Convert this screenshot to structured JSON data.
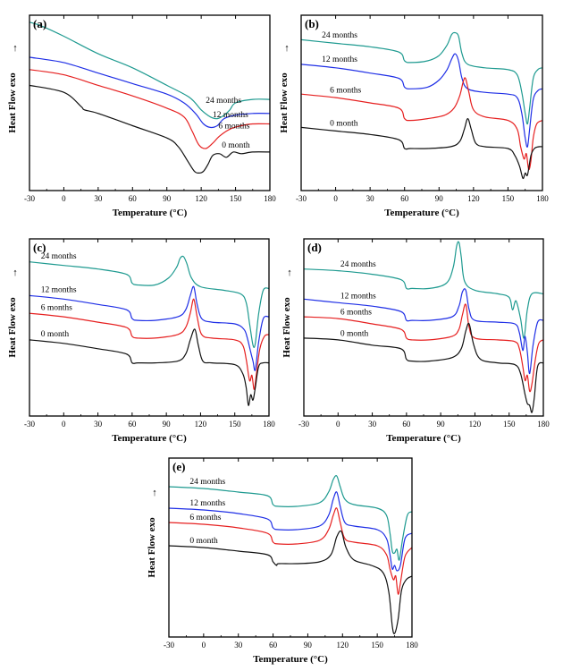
{
  "figure": {
    "y_axis_arrow": "↑",
    "colors": {
      "24 months": "#1e9a90",
      "12 months": "#1f2fe6",
      "6 months": "#e62020",
      "0 month": "#111111"
    }
  },
  "chart_data": [
    {
      "type": "line",
      "panel": "(a)",
      "xlabel": "Temperature (°C)",
      "ylabel": "Heat Flow  exo",
      "xlim": [
        -30,
        180
      ],
      "xticks": [
        -30,
        0,
        30,
        60,
        90,
        120,
        150,
        180
      ],
      "ylim": [
        0,
        100
      ],
      "grid": false,
      "series": [
        {
          "name": "24 months",
          "color": "#1e9a90",
          "x": [
            -30,
            -20,
            0,
            30,
            60,
            90,
            110,
            120,
            128,
            134,
            140,
            145,
            150,
            165,
            180
          ],
          "y": [
            96,
            94,
            88,
            78,
            70,
            60,
            53,
            46,
            42,
            41,
            43,
            46,
            50,
            52,
            52
          ]
        },
        {
          "name": "12 months",
          "color": "#1f2fe6",
          "x": [
            -30,
            0,
            30,
            60,
            90,
            105,
            115,
            122,
            128,
            134,
            140,
            150,
            165,
            180
          ],
          "y": [
            76,
            73,
            67,
            61,
            55,
            50,
            44,
            38,
            36,
            37,
            41,
            43,
            44,
            44
          ]
        },
        {
          "name": "6 months",
          "color": "#e62020",
          "x": [
            -30,
            0,
            30,
            60,
            90,
            105,
            112,
            118,
            124,
            130,
            136,
            145,
            155,
            165,
            180
          ],
          "y": [
            69,
            66,
            60,
            54,
            47,
            42,
            34,
            26,
            24,
            27,
            31,
            35,
            37,
            38,
            38
          ]
        },
        {
          "name": "0 month",
          "color": "#111111",
          "x": [
            -30,
            0,
            15,
            18,
            30,
            60,
            90,
            100,
            108,
            114,
            118,
            122,
            126,
            130,
            136,
            142,
            148,
            155,
            165,
            180
          ],
          "y": [
            60,
            56,
            48,
            46,
            44,
            37,
            30,
            25,
            17,
            11,
            10,
            11,
            15,
            20,
            21,
            19,
            22,
            21,
            22,
            22
          ]
        }
      ]
    },
    {
      "type": "line",
      "panel": "(b)",
      "xlabel": "Temperature (°C)",
      "ylabel": "Heat Flow  exo",
      "xlim": [
        -30,
        180
      ],
      "xticks": [
        -30,
        0,
        30,
        60,
        90,
        120,
        150,
        180
      ],
      "ylim": [
        0,
        100
      ],
      "grid": false,
      "series": [
        {
          "name": "24 months",
          "color": "#1e9a90",
          "x": [
            -30,
            0,
            30,
            55,
            60,
            65,
            80,
            90,
            97,
            101,
            104,
            107,
            110,
            115,
            130,
            150,
            158,
            162,
            165,
            167,
            169,
            172,
            176,
            180
          ],
          "y": [
            86,
            84,
            82,
            79,
            74,
            73,
            74,
            77,
            83,
            89,
            90,
            88,
            78,
            72,
            70,
            69,
            66,
            56,
            44,
            38,
            48,
            64,
            69,
            70
          ]
        },
        {
          "name": "12 months",
          "color": "#1f2fe6",
          "x": [
            -30,
            0,
            30,
            55,
            60,
            65,
            80,
            90,
            97,
            101,
            104,
            107,
            110,
            115,
            130,
            150,
            158,
            162,
            165,
            167,
            169,
            172,
            176,
            180
          ],
          "y": [
            72,
            70,
            67,
            64,
            59,
            58,
            59,
            63,
            69,
            75,
            78,
            74,
            64,
            58,
            56,
            55,
            53,
            44,
            30,
            25,
            36,
            52,
            57,
            58
          ]
        },
        {
          "name": "6 months",
          "color": "#e62020",
          "x": [
            -30,
            0,
            30,
            55,
            60,
            65,
            80,
            95,
            103,
            108,
            111,
            113,
            116,
            120,
            130,
            150,
            158,
            161,
            164,
            166,
            168,
            170,
            172,
            175,
            180
          ],
          "y": [
            55,
            53,
            50,
            47,
            41,
            40,
            41,
            43,
            47,
            54,
            62,
            64,
            56,
            46,
            42,
            40,
            35,
            25,
            18,
            21,
            12,
            17,
            30,
            38,
            40
          ]
        },
        {
          "name": "0 month",
          "color": "#111111",
          "x": [
            -30,
            0,
            30,
            55,
            60,
            65,
            80,
            100,
            108,
            112,
            115,
            118,
            122,
            130,
            150,
            156,
            160,
            163,
            165,
            167,
            170,
            173,
            177,
            180
          ],
          "y": [
            36,
            34,
            32,
            29,
            24,
            24,
            24,
            25,
            28,
            35,
            41,
            35,
            27,
            25,
            24,
            20,
            14,
            7,
            10,
            9,
            20,
            24,
            25,
            25
          ]
        }
      ]
    },
    {
      "type": "line",
      "panel": "(c)",
      "xlabel": "Temperature (°C)",
      "ylabel": "Heat Flow  exo",
      "xlim": [
        -30,
        180
      ],
      "xticks": [
        -30,
        0,
        30,
        60,
        90,
        120,
        150,
        180
      ],
      "ylim": [
        0,
        100
      ],
      "grid": false,
      "series": [
        {
          "name": "24 months",
          "color": "#1e9a90",
          "x": [
            -30,
            0,
            30,
            55,
            60,
            65,
            80,
            92,
            99,
            102,
            105,
            108,
            112,
            120,
            140,
            155,
            160,
            163,
            166,
            168,
            171,
            175,
            180
          ],
          "y": [
            87,
            85,
            83,
            80,
            75,
            74,
            74,
            78,
            84,
            89,
            90,
            86,
            78,
            73,
            71,
            69,
            64,
            52,
            40,
            41,
            58,
            71,
            72
          ]
        },
        {
          "name": "12 months",
          "color": "#1f2fe6",
          "x": [
            -30,
            0,
            30,
            55,
            60,
            65,
            80,
            100,
            107,
            111,
            114,
            117,
            121,
            130,
            150,
            158,
            161,
            164,
            166,
            168,
            171,
            175,
            180
          ],
          "y": [
            68,
            66,
            63,
            60,
            55,
            54,
            54,
            56,
            60,
            68,
            73,
            63,
            55,
            53,
            52,
            49,
            44,
            36,
            31,
            26,
            42,
            55,
            56
          ]
        },
        {
          "name": "6 months",
          "color": "#e62020",
          "x": [
            -30,
            0,
            30,
            55,
            60,
            65,
            80,
            100,
            107,
            111,
            114,
            117,
            121,
            130,
            150,
            157,
            160,
            163,
            165,
            167,
            169,
            172,
            176,
            180
          ],
          "y": [
            58,
            56,
            53,
            50,
            45,
            44,
            44,
            46,
            50,
            58,
            66,
            56,
            46,
            44,
            43,
            40,
            32,
            20,
            23,
            15,
            24,
            38,
            45,
            46
          ]
        },
        {
          "name": "0 month",
          "color": "#111111",
          "x": [
            -30,
            0,
            30,
            55,
            60,
            65,
            80,
            100,
            107,
            111,
            115,
            118,
            122,
            130,
            150,
            157,
            160,
            162,
            164,
            166,
            168,
            171,
            175,
            180
          ],
          "y": [
            43,
            41,
            38,
            35,
            30,
            30,
            30,
            31,
            35,
            43,
            49,
            40,
            31,
            30,
            29,
            24,
            16,
            6,
            12,
            9,
            16,
            28,
            30,
            30
          ]
        }
      ]
    },
    {
      "type": "line",
      "panel": "(d)",
      "xlabel": "Temperature (°C)",
      "ylabel": "Heat Flow  exo",
      "xlim": [
        -30,
        180
      ],
      "xticks": [
        -30,
        0,
        30,
        60,
        90,
        120,
        150,
        180
      ],
      "ylim": [
        0,
        100
      ],
      "grid": false,
      "series": [
        {
          "name": "24 months",
          "color": "#1e9a90",
          "x": [
            -30,
            0,
            30,
            55,
            60,
            65,
            80,
            95,
            101,
            104,
            106,
            108,
            111,
            120,
            140,
            150,
            153,
            156,
            160,
            163,
            166,
            170,
            180
          ],
          "y": [
            83,
            82,
            80,
            77,
            72,
            72,
            72,
            75,
            84,
            96,
            98,
            90,
            76,
            71,
            69,
            67,
            60,
            65,
            55,
            44,
            60,
            69,
            69
          ]
        },
        {
          "name": "12 months",
          "color": "#1f2fe6",
          "x": [
            -30,
            0,
            30,
            55,
            60,
            65,
            80,
            100,
            106,
            109,
            112,
            115,
            120,
            140,
            155,
            159,
            162,
            164,
            166,
            168,
            171,
            175,
            180
          ],
          "y": [
            66,
            64,
            62,
            59,
            54,
            54,
            54,
            56,
            62,
            70,
            71,
            60,
            54,
            53,
            52,
            47,
            37,
            45,
            36,
            24,
            40,
            53,
            54
          ]
        },
        {
          "name": "6 months",
          "color": "#e62020",
          "x": [
            -30,
            0,
            30,
            55,
            60,
            65,
            80,
            100,
            106,
            109,
            112,
            115,
            120,
            140,
            155,
            159,
            162,
            164,
            166,
            168,
            170,
            173,
            176,
            180
          ],
          "y": [
            56,
            55,
            52,
            49,
            44,
            43,
            43,
            45,
            49,
            57,
            63,
            50,
            44,
            43,
            42,
            38,
            28,
            20,
            23,
            14,
            18,
            32,
            41,
            43
          ]
        },
        {
          "name": "0 month",
          "color": "#111111",
          "x": [
            -30,
            0,
            30,
            55,
            60,
            65,
            80,
            100,
            108,
            112,
            115,
            119,
            125,
            140,
            155,
            160,
            164,
            166,
            168,
            170,
            172,
            175,
            180
          ],
          "y": [
            44,
            43,
            40,
            38,
            32,
            31,
            31,
            33,
            38,
            48,
            52,
            40,
            32,
            30,
            29,
            24,
            12,
            7,
            6,
            2,
            10,
            28,
            30
          ]
        }
      ]
    },
    {
      "type": "line",
      "panel": "(e)",
      "xlabel": "Temperature (°C)",
      "ylabel": "Heat Flow  exo",
      "xlim": [
        -30,
        180
      ],
      "xticks": [
        -30,
        0,
        30,
        60,
        90,
        120,
        150,
        180
      ],
      "ylim": [
        0,
        100
      ],
      "grid": false,
      "series": [
        {
          "name": "24 months",
          "color": "#1e9a90",
          "x": [
            -30,
            0,
            30,
            55,
            60,
            65,
            80,
            100,
            108,
            112,
            115,
            118,
            122,
            130,
            150,
            158,
            161,
            163,
            165,
            167,
            169,
            172,
            176,
            180
          ],
          "y": [
            84,
            83,
            81,
            79,
            74,
            73,
            73,
            75,
            81,
            88,
            90,
            84,
            77,
            74,
            72,
            68,
            58,
            48,
            47,
            49,
            43,
            55,
            68,
            70
          ]
        },
        {
          "name": "12 months",
          "color": "#1f2fe6",
          "x": [
            -30,
            0,
            30,
            55,
            60,
            65,
            80,
            100,
            108,
            112,
            115,
            118,
            122,
            130,
            150,
            158,
            161,
            163,
            165,
            167,
            170,
            174,
            180
          ],
          "y": [
            72,
            71,
            69,
            66,
            61,
            60,
            60,
            62,
            68,
            77,
            81,
            73,
            64,
            62,
            60,
            55,
            46,
            38,
            40,
            37,
            40,
            55,
            58
          ]
        },
        {
          "name": "6 months",
          "color": "#e62020",
          "x": [
            -30,
            0,
            30,
            55,
            60,
            65,
            80,
            100,
            108,
            112,
            115,
            118,
            122,
            130,
            150,
            158,
            161,
            164,
            166,
            168,
            170,
            174,
            180
          ],
          "y": [
            64,
            63,
            61,
            58,
            53,
            52,
            52,
            54,
            60,
            68,
            72,
            64,
            55,
            53,
            51,
            46,
            38,
            32,
            34,
            24,
            30,
            45,
            50
          ]
        },
        {
          "name": "0 month",
          "color": "#111111",
          "x": [
            -30,
            0,
            30,
            55,
            60,
            63,
            65,
            80,
            100,
            110,
            115,
            119,
            123,
            130,
            145,
            155,
            160,
            163,
            165,
            168,
            171,
            175,
            180
          ],
          "y": [
            51,
            50,
            48,
            46,
            42,
            40,
            41,
            41,
            42,
            46,
            56,
            59,
            50,
            43,
            40,
            36,
            25,
            6,
            2,
            10,
            26,
            32,
            34
          ]
        }
      ]
    }
  ]
}
